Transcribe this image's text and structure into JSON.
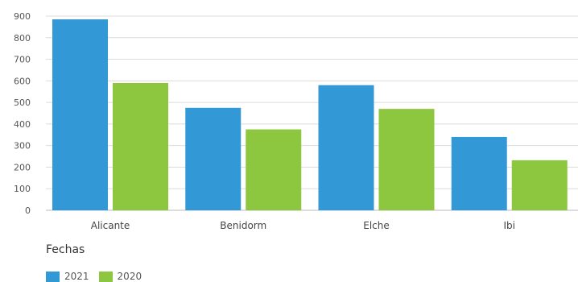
{
  "chart_data": {
    "type": "bar",
    "categories": [
      "Alicante",
      "Benidorm",
      "Elche",
      "Ibi"
    ],
    "series": [
      {
        "name": "2021",
        "color": "#3399d6",
        "values": [
          885,
          475,
          580,
          340
        ]
      },
      {
        "name": "2020",
        "color": "#8dc63f",
        "values": [
          590,
          375,
          470,
          232
        ]
      }
    ],
    "ylim": [
      0,
      900
    ],
    "yticks": [
      0,
      100,
      200,
      300,
      400,
      500,
      600,
      700,
      800,
      900
    ],
    "grid": true,
    "legend_title": "Fechas",
    "legend_position": "bottom-left"
  }
}
